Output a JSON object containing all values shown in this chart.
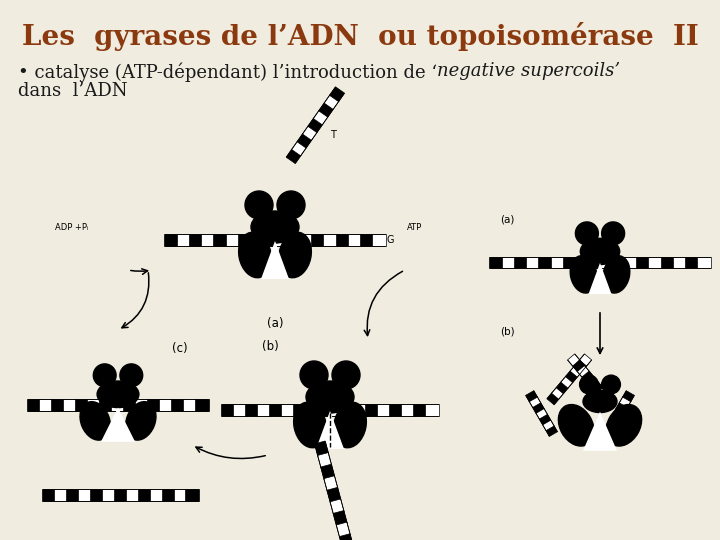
{
  "title": "Les  gyrases de l’ADN  ou topoisomérase  II",
  "title_color": "#8B3A10",
  "title_fontsize": 20,
  "bullet_regular": "• catalyse (ATP-dépendant) l’introduction de ‘",
  "bullet_italic": "negative supercoils’",
  "bullet_line2": "dans  l’ADN",
  "body_color": "#1a1a1a",
  "body_fontsize": 13,
  "bg_color": "#f0ece0",
  "diagram_bg": "#ffffff",
  "fig_width": 7.2,
  "fig_height": 5.4,
  "dpi": 100
}
